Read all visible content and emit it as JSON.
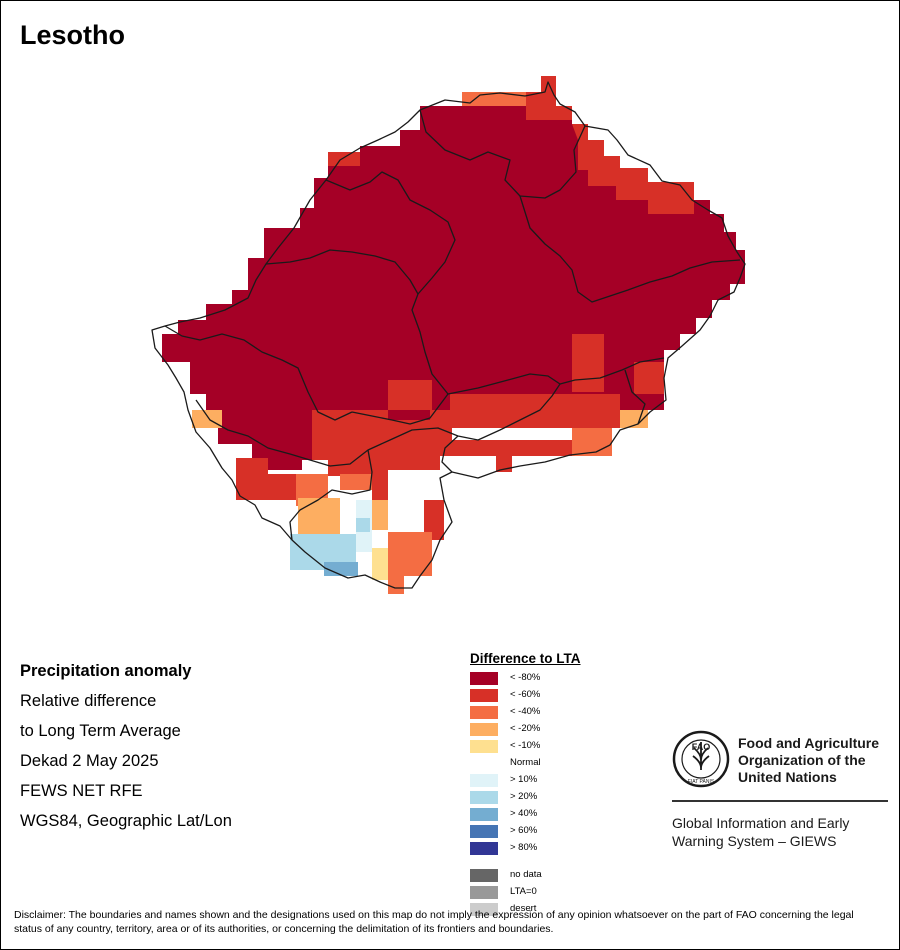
{
  "map": {
    "title": "Lesotho",
    "info": {
      "heading": "Precipitation anomaly",
      "lines": [
        "Relative difference",
        "to Long Term Average",
        "Dekad 2 May 2025",
        "FEWS NET RFE",
        "WGS84, Geographic Lat/Lon"
      ]
    },
    "legend": {
      "title": "Difference to LTA",
      "classes": [
        {
          "label": "< -80%",
          "color": "#a50026"
        },
        {
          "label": "< -60%",
          "color": "#d73027"
        },
        {
          "label": "< -40%",
          "color": "#f46d43"
        },
        {
          "label": "< -20%",
          "color": "#fdae61"
        },
        {
          "label": "< -10%",
          "color": "#fee090"
        },
        {
          "label": "Normal",
          "color": "#ffffff"
        },
        {
          "label": "> 10%",
          "color": "#e0f3f8"
        },
        {
          "label": "> 20%",
          "color": "#abd9e9"
        },
        {
          "label": "> 40%",
          "color": "#74add1"
        },
        {
          "label": "> 60%",
          "color": "#4575b4"
        },
        {
          "label": "> 80%",
          "color": "#313695"
        }
      ],
      "extra": [
        {
          "label": "no data",
          "color": "#666666"
        },
        {
          "label": "LTA=0",
          "color": "#999999"
        },
        {
          "label": "desert",
          "color": "#cccccc"
        }
      ]
    },
    "logo": {
      "org_name": "Food and Agriculture Organization of the United Nations",
      "emblem_text": "FAO",
      "emblem_motto": "FIAT PANIS",
      "system_name": "Global Information and Early Warning System – GIEWS"
    },
    "disclaimer": "Disclaimer: The boundaries and names shown and the designations used on this map do not imply the expression of any opinion whatsoever on the part of FAO concerning the legal status of any country, territory, area or of its authorities, or concerning the delimitation of its frontiers and boundaries."
  }
}
